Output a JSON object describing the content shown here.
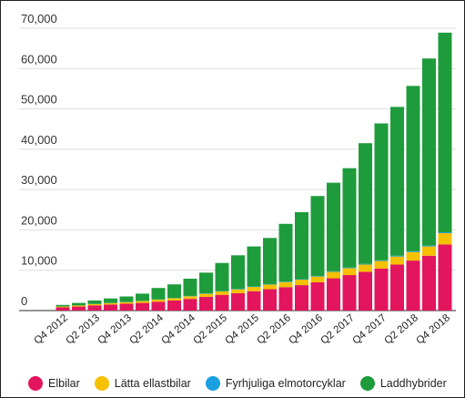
{
  "chart_data": {
    "type": "bar",
    "stacked": true,
    "quarters": [
      "Q4 2012",
      "Q1 2013",
      "Q2 2013",
      "Q3 2013",
      "Q4 2013",
      "Q1 2014",
      "Q2 2014",
      "Q3 2014",
      "Q4 2014",
      "Q1 2015",
      "Q2 2015",
      "Q3 2015",
      "Q4 2015",
      "Q1 2016",
      "Q2 2016",
      "Q3 2016",
      "Q4 2016",
      "Q1 2017",
      "Q2 2017",
      "Q3 2017",
      "Q4 2017",
      "Q1 2018",
      "Q2 2018",
      "Q3 2018",
      "Q4 2018"
    ],
    "tick_labels": [
      "Q4 2012",
      "Q2 2013",
      "Q4 2013",
      "Q2 2014",
      "Q4 2014",
      "Q2 2015",
      "Q4 2015",
      "Q2 2016",
      "Q4 2016",
      "Q2 2017",
      "Q4 2017",
      "Q2 2018",
      "Q4 2018"
    ],
    "yticks": [
      "0",
      "10,000",
      "20,000",
      "30,000",
      "40,000",
      "50,000",
      "60,000",
      "70,000"
    ],
    "ylim": [
      0,
      70000
    ],
    "grid": true,
    "legend_position": "bottom",
    "series": [
      {
        "name": "Elbilar",
        "color": "#e3155d",
        "values": [
          800,
          1000,
          1300,
          1500,
          1700,
          1900,
          2200,
          2500,
          2900,
          3400,
          3900,
          4300,
          4800,
          5300,
          5800,
          6300,
          7000,
          8000,
          8800,
          9600,
          10400,
          11400,
          12400,
          13600,
          16400
        ]
      },
      {
        "name": "Lätta ellastbilar",
        "color": "#f5c000",
        "values": [
          200,
          250,
          300,
          350,
          400,
          450,
          500,
          550,
          650,
          750,
          850,
          950,
          1050,
          1150,
          1250,
          1350,
          1450,
          1600,
          1700,
          1800,
          1900,
          2000,
          2100,
          2300,
          2800
        ]
      },
      {
        "name": "Fyrhjuliga elmotorcyklar",
        "color": "#1a9fe0",
        "values": [
          30,
          30,
          40,
          40,
          50,
          50,
          60,
          60,
          70,
          80,
          90,
          100,
          100,
          110,
          120,
          130,
          140,
          150,
          160,
          170,
          180,
          190,
          200,
          210,
          220
        ]
      },
      {
        "name": "Laddhybrider",
        "color": "#1e9c3c",
        "values": [
          370,
          620,
          860,
          1110,
          1350,
          1800,
          2840,
          3390,
          4280,
          5170,
          6960,
          8350,
          9950,
          11440,
          14330,
          16620,
          19810,
          21950,
          24640,
          29930,
          33920,
          36910,
          41000,
          46390,
          49480
        ]
      }
    ]
  }
}
